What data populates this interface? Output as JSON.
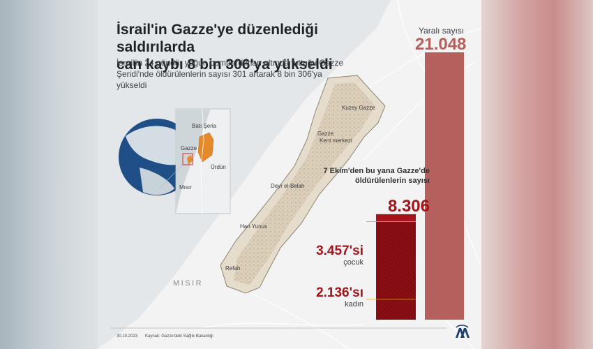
{
  "title_line1": "İsrail'in Gazze'ye düzenlediği saldırılarda",
  "title_line2": "can kaybı 8 bin 306'ya yükseldi",
  "subtitle": "İsrail'in 24 gündür yoğun bombardıman altında tuttuğu Gazze Şeridi'nde öldürülenlerin sayısı 301 artarak 8 bin 306'ya yükseldi",
  "map": {
    "inset": {
      "west_bank": "Batı Şeria",
      "gaza": "Gazze",
      "jordan": "Ürdün",
      "egypt": "Mısır"
    },
    "places": [
      "Kuzey Gazze",
      "Gazze",
      "Kent merkezi",
      "Deyr el-Belah",
      "Han Yunus",
      "Refah"
    ],
    "country": "MISIR"
  },
  "chart_data": {
    "type": "bar",
    "categories": [
      "7 Ekim'den bu yana Gazze'de öldürülenlerin sayısı",
      "Yaralı sayısı"
    ],
    "values": [
      8306,
      21048
    ],
    "breakdown": [
      {
        "label": "çocuk",
        "value": 3457,
        "display": "3.457'si"
      },
      {
        "label": "kadın",
        "value": 2136,
        "display": "2.136'sı"
      }
    ],
    "labels": {
      "wounded": "Yaralı sayısı",
      "wounded_value": "21.048",
      "killed": "7 Ekim'den bu yana Gazze'de öldürülenlerin sayısı",
      "killed_value": "8.306"
    },
    "colors": {
      "wounded": "#b5605d",
      "killed": "#a5141a",
      "killed_dark": "#8a0e14",
      "hatch": "#6e0a0f"
    }
  },
  "footer": {
    "date": "30.10.2023",
    "source": "Kaynak: Gazze'deki Sağlık Bakanlığı"
  },
  "logo": "aa-agency-logo"
}
